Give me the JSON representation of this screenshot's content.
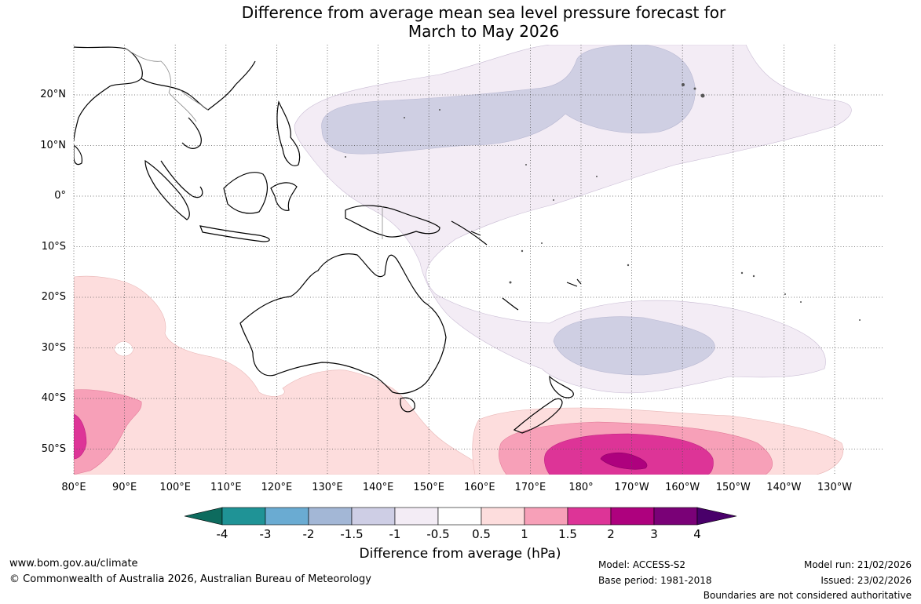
{
  "title": {
    "line1": "Difference from average mean sea level pressure forecast for",
    "line2": "March to May 2026"
  },
  "axes": {
    "lat_labels": [
      "20°N",
      "10°N",
      "0°",
      "10°S",
      "20°S",
      "30°S",
      "40°S",
      "50°S"
    ],
    "lon_labels": [
      "80°E",
      "90°E",
      "100°E",
      "110°E",
      "120°E",
      "130°E",
      "140°E",
      "150°E",
      "160°E",
      "170°E",
      "180°",
      "170°W",
      "160°W",
      "150°W",
      "140°W",
      "130°W"
    ]
  },
  "colorbar": {
    "title": "Difference from average (hPa)",
    "labels": [
      "-4",
      "-3",
      "-2",
      "-1.5",
      "-1",
      "-0.5",
      "0.5",
      "1",
      "1.5",
      "2",
      "3",
      "4"
    ],
    "colors": [
      "#0d6b5e",
      "#1f9396",
      "#6aabd2",
      "#a3b7d6",
      "#ceceE5",
      "#f3ecf5",
      "#ffffff",
      "#fddddd",
      "#f7a0b8",
      "#dd3497",
      "#ae017e",
      "#7a0177",
      "#49006a"
    ]
  },
  "footer": {
    "website": "www.bom.gov.au/climate",
    "copyright": "© Commonwealth of Australia 2026, Australian Bureau of Meteorology",
    "model": "Model: ACCESS-S2",
    "base_period": "Base period: 1981-2018",
    "model_run": "Model run: 21/02/2026",
    "issued": "Issued: 23/02/2026",
    "disclaimer": "Boundaries are not considered authoritative"
  }
}
